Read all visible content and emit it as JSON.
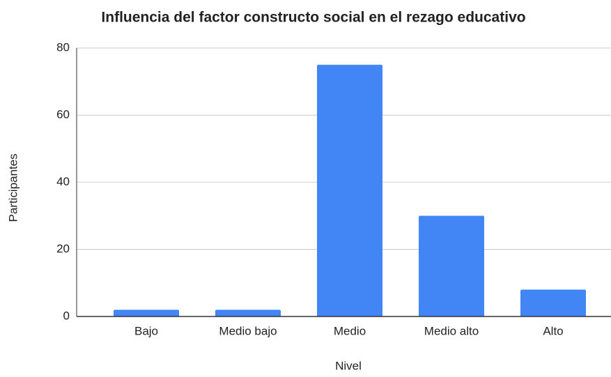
{
  "chart_data": {
    "type": "bar",
    "title": "Influencia del factor constructo social en el rezago educativo",
    "x_label": "Nivel",
    "y_label": "Participantes",
    "categories": [
      "Bajo",
      "Medio bajo",
      "Medio",
      "Medio alto",
      "Alto"
    ],
    "values": [
      2,
      2,
      75,
      30,
      8
    ],
    "color": "#4285f4",
    "ylim": [
      0,
      80
    ],
    "yticks": [
      0,
      20,
      40,
      60,
      80
    ],
    "grid": true
  }
}
